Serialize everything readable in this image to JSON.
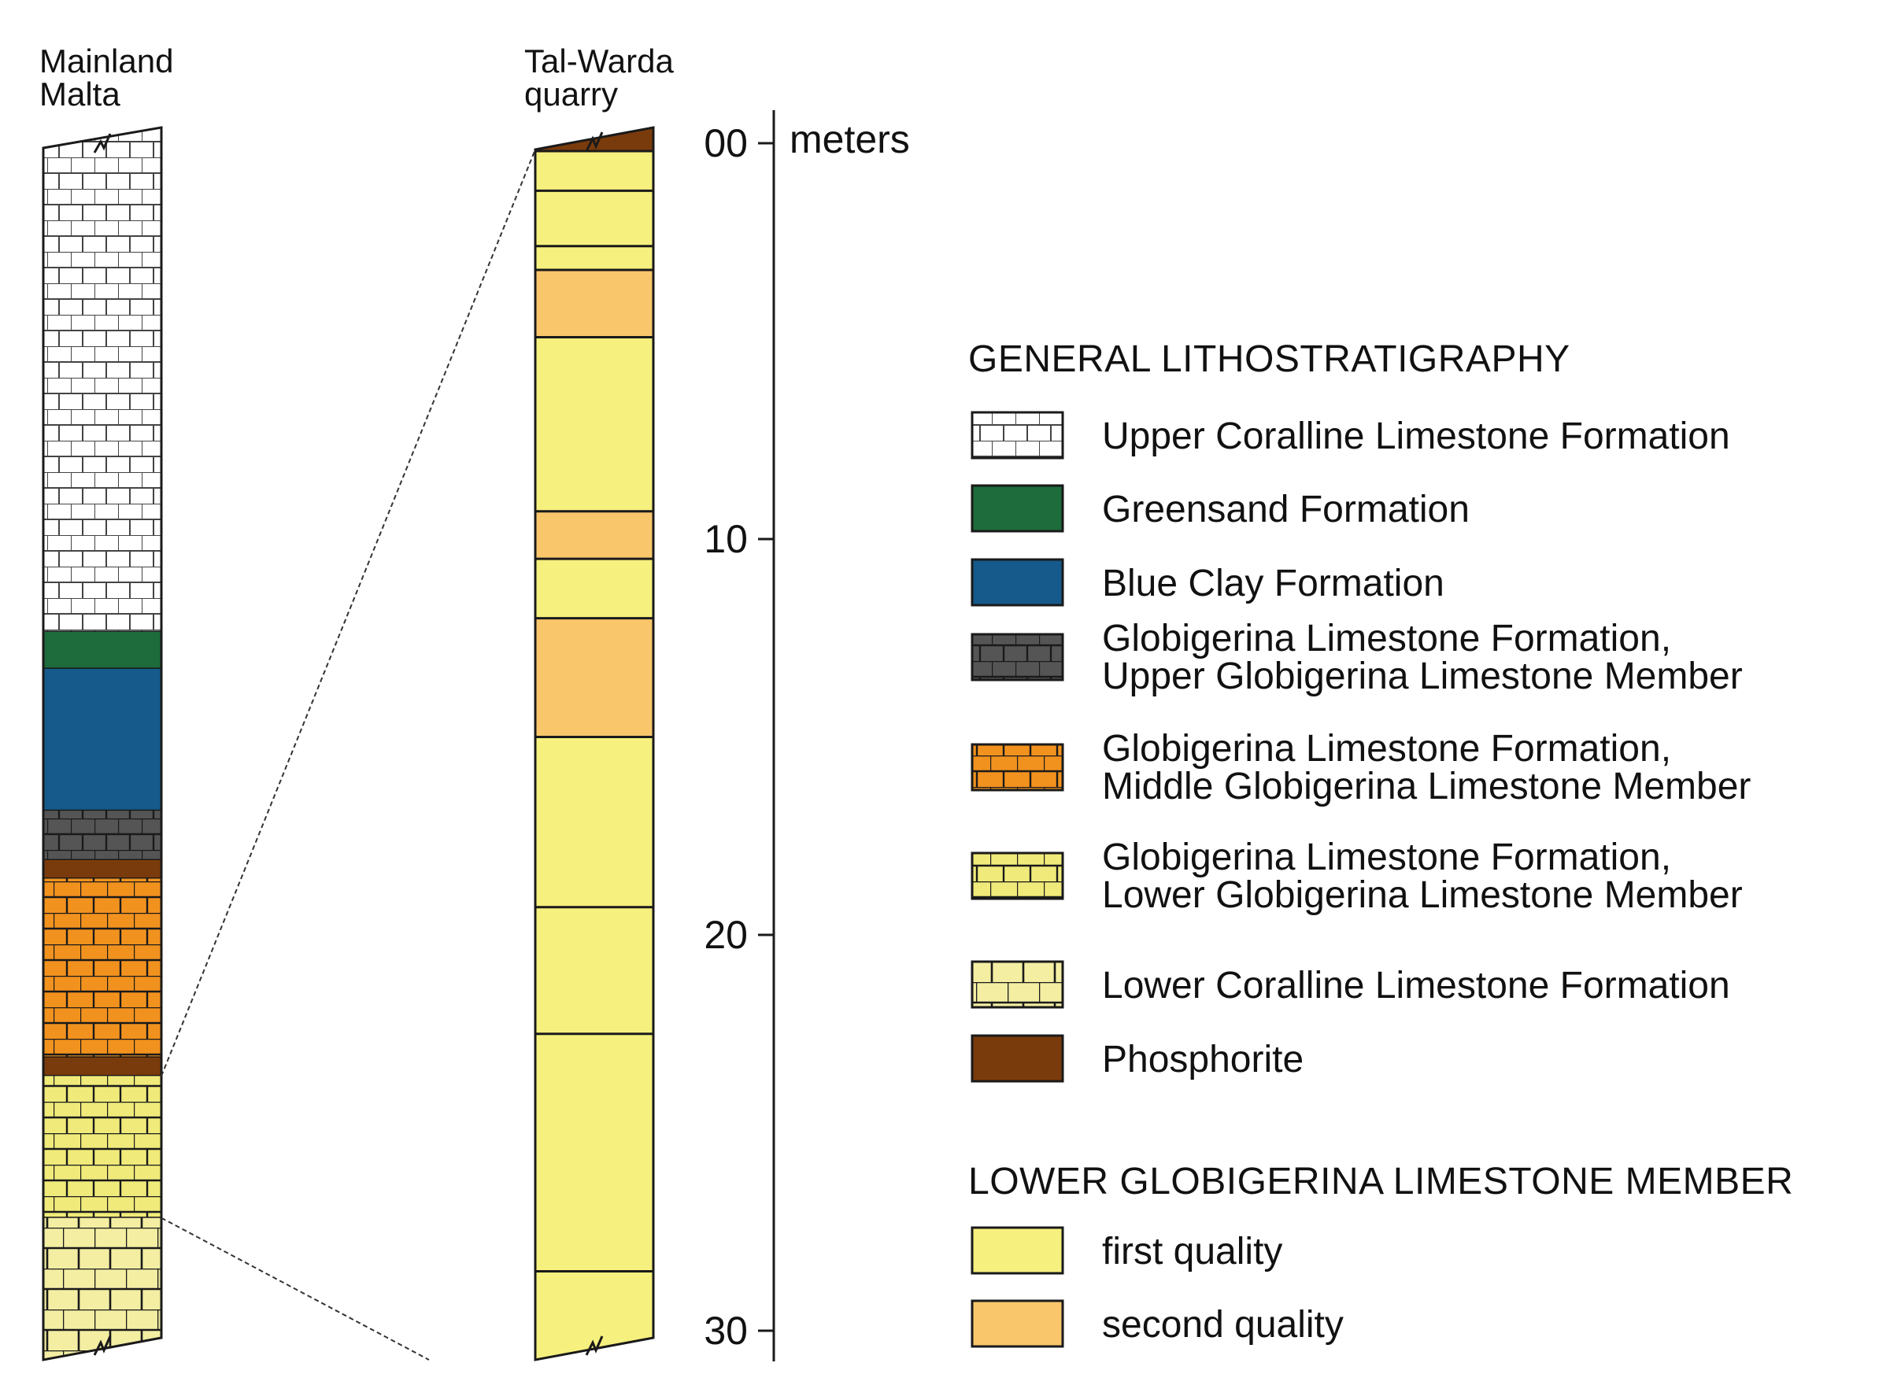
{
  "columns": {
    "mainland_title": [
      "Mainland",
      "Malta"
    ],
    "quarry_title": [
      "Tal-Warda",
      "quarry"
    ]
  },
  "axis": {
    "unit_label": "meters",
    "ticks": [
      {
        "label": "00",
        "value": 0
      },
      {
        "label": "10",
        "value": 10
      },
      {
        "label": "20",
        "value": 20
      },
      {
        "label": "30",
        "value": 30
      }
    ]
  },
  "mainland_layers": [
    {
      "unit": "upper-coralline",
      "pattern": "brick-white",
      "from": 0,
      "to": 0.41
    },
    {
      "unit": "greensand",
      "pattern": "solid-green",
      "from": 0.41,
      "to": 0.44
    },
    {
      "unit": "blue-clay",
      "pattern": "solid-blue",
      "from": 0.44,
      "to": 0.555
    },
    {
      "unit": "upper-globigerina",
      "pattern": "brick-grey",
      "from": 0.555,
      "to": 0.595
    },
    {
      "unit": "phosphorite-1",
      "pattern": "solid-brown",
      "from": 0.595,
      "to": 0.61
    },
    {
      "unit": "middle-globigerina",
      "pattern": "brick-orange",
      "from": 0.61,
      "to": 0.755
    },
    {
      "unit": "phosphorite-2",
      "pattern": "solid-brown",
      "from": 0.755,
      "to": 0.77
    },
    {
      "unit": "lower-globigerina",
      "pattern": "brick-yellow",
      "from": 0.77,
      "to": 0.885
    },
    {
      "unit": "lower-coralline",
      "pattern": "brick-cream",
      "from": 0.885,
      "to": 1.0
    }
  ],
  "quarry_layers": [
    {
      "quality": "first",
      "from": 0.2,
      "to": 1.2
    },
    {
      "quality": "first",
      "from": 1.2,
      "to": 2.6
    },
    {
      "quality": "first",
      "from": 2.6,
      "to": 3.2
    },
    {
      "quality": "second",
      "from": 3.2,
      "to": 4.9
    },
    {
      "quality": "first",
      "from": 4.9,
      "to": 9.3
    },
    {
      "quality": "second",
      "from": 9.3,
      "to": 10.5
    },
    {
      "quality": "first",
      "from": 10.5,
      "to": 12.0
    },
    {
      "quality": "second",
      "from": 12.0,
      "to": 15.0
    },
    {
      "quality": "first",
      "from": 15.0,
      "to": 19.3
    },
    {
      "quality": "first",
      "from": 19.3,
      "to": 22.5
    },
    {
      "quality": "first",
      "from": 22.5,
      "to": 28.5
    },
    {
      "quality": "first",
      "from": 28.5,
      "to": 31.0
    }
  ],
  "legend": {
    "general_heading": "GENERAL LITHOSTRATIGRAPHY",
    "general_items": [
      {
        "key": "upper-coralline",
        "pattern": "brick-white",
        "lines": [
          "Upper Coralline Limestone Formation"
        ]
      },
      {
        "key": "greensand",
        "pattern": "solid-green",
        "lines": [
          "Greensand Formation"
        ]
      },
      {
        "key": "blue-clay",
        "pattern": "solid-blue",
        "lines": [
          "Blue Clay Formation"
        ]
      },
      {
        "key": "upper-globigerina",
        "pattern": "brick-grey",
        "lines": [
          "Globigerina Limestone Formation,",
          "Upper Globigerina Limestone Member"
        ]
      },
      {
        "key": "middle-globigerina",
        "pattern": "brick-orange",
        "lines": [
          "Globigerina Limestone Formation,",
          "Middle Globigerina Limestone Member"
        ]
      },
      {
        "key": "lower-globigerina",
        "pattern": "brick-yellow",
        "lines": [
          "Globigerina Limestone Formation,",
          "Lower Globigerina Limestone Member"
        ]
      },
      {
        "key": "lower-coralline",
        "pattern": "brick-cream",
        "lines": [
          "Lower Coralline Limestone Formation"
        ]
      },
      {
        "key": "phosphorite",
        "pattern": "solid-brown",
        "lines": [
          "Phosphorite"
        ]
      }
    ],
    "member_heading": "LOWER GLOBIGERINA LIMESTONE MEMBER",
    "member_items": [
      {
        "key": "first-quality",
        "pattern": "solid-first",
        "lines": [
          "first quality"
        ]
      },
      {
        "key": "second-quality",
        "pattern": "solid-second",
        "lines": [
          "second quality"
        ]
      }
    ]
  },
  "colors": {
    "upper_coralline": "#ffffff",
    "greensand": "#1e6b3c",
    "blue_clay": "#155a8a",
    "upper_globigerina": "#555555",
    "middle_globigerina": "#f2921e",
    "lower_globigerina": "#f0ea7a",
    "lower_coralline": "#f3eea2",
    "phosphorite": "#7a3b0c",
    "first_quality": "#f6f07e",
    "second_quality": "#f9c66c",
    "brick_line": "#1a1a1a",
    "brick_line_light": "#444444"
  }
}
